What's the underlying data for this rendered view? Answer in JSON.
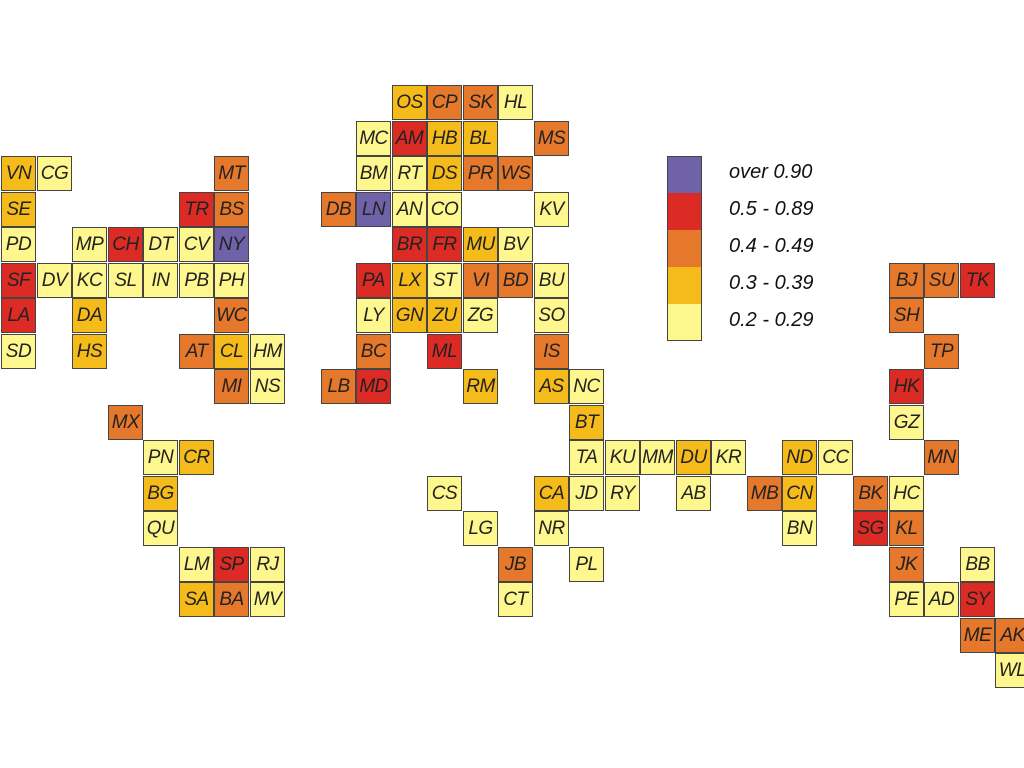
{
  "colors": {
    "purple": "#6f62a8",
    "red": "#dc2b24",
    "orange": "#e5782a",
    "gold": "#f5bb1a",
    "yellow": "#fdf78e"
  },
  "legend": [
    {
      "label": "over 0.90",
      "color": "purple"
    },
    {
      "label": "0.5 - 0.89",
      "color": "red"
    },
    {
      "label": "0.4 - 0.49",
      "color": "orange"
    },
    {
      "label": "0.3 - 0.39",
      "color": "gold"
    },
    {
      "label": "0.2 - 0.29",
      "color": "yellow"
    }
  ],
  "cells": [
    {
      "label": "OS",
      "color": "gold",
      "col": 11,
      "row": 0
    },
    {
      "label": "CP",
      "color": "orange",
      "col": 12,
      "row": 0
    },
    {
      "label": "SK",
      "color": "orange",
      "col": 13,
      "row": 0
    },
    {
      "label": "HL",
      "color": "yellow",
      "col": 14,
      "row": 0
    },
    {
      "label": "MC",
      "color": "yellow",
      "col": 10,
      "row": 1
    },
    {
      "label": "AM",
      "color": "red",
      "col": 11,
      "row": 1
    },
    {
      "label": "HB",
      "color": "gold",
      "col": 12,
      "row": 1
    },
    {
      "label": "BL",
      "color": "gold",
      "col": 13,
      "row": 1
    },
    {
      "label": "MS",
      "color": "orange",
      "col": 15,
      "row": 1
    },
    {
      "label": "VN",
      "color": "gold",
      "col": 0,
      "row": 2
    },
    {
      "label": "CG",
      "color": "yellow",
      "col": 1,
      "row": 2
    },
    {
      "label": "MT",
      "color": "orange",
      "col": 6,
      "row": 2
    },
    {
      "label": "BM",
      "color": "yellow",
      "col": 10,
      "row": 2
    },
    {
      "label": "RT",
      "color": "yellow",
      "col": 11,
      "row": 2
    },
    {
      "label": "DS",
      "color": "gold",
      "col": 12,
      "row": 2
    },
    {
      "label": "PR",
      "color": "orange",
      "col": 13,
      "row": 2
    },
    {
      "label": "WS",
      "color": "orange",
      "col": 14,
      "row": 2
    },
    {
      "label": "SE",
      "color": "gold",
      "col": 0,
      "row": 3
    },
    {
      "label": "TR",
      "color": "red",
      "col": 5,
      "row": 3
    },
    {
      "label": "BS",
      "color": "orange",
      "col": 6,
      "row": 3
    },
    {
      "label": "DB",
      "color": "orange",
      "col": 9,
      "row": 3
    },
    {
      "label": "LN",
      "color": "purple",
      "col": 10,
      "row": 3
    },
    {
      "label": "AN",
      "color": "yellow",
      "col": 11,
      "row": 3
    },
    {
      "label": "CO",
      "color": "yellow",
      "col": 12,
      "row": 3
    },
    {
      "label": "KV",
      "color": "yellow",
      "col": 15,
      "row": 3
    },
    {
      "label": "PD",
      "color": "yellow",
      "col": 0,
      "row": 4
    },
    {
      "label": "MP",
      "color": "yellow",
      "col": 2,
      "row": 4
    },
    {
      "label": "CH",
      "color": "red",
      "col": 3,
      "row": 4
    },
    {
      "label": "DT",
      "color": "yellow",
      "col": 4,
      "row": 4
    },
    {
      "label": "CV",
      "color": "yellow",
      "col": 5,
      "row": 4
    },
    {
      "label": "NY",
      "color": "purple",
      "col": 6,
      "row": 4
    },
    {
      "label": "BR",
      "color": "red",
      "col": 11,
      "row": 4
    },
    {
      "label": "FR",
      "color": "red",
      "col": 12,
      "row": 4
    },
    {
      "label": "MU",
      "color": "gold",
      "col": 13,
      "row": 4
    },
    {
      "label": "BV",
      "color": "yellow",
      "col": 14,
      "row": 4
    },
    {
      "label": "SF",
      "color": "red",
      "col": 0,
      "row": 5
    },
    {
      "label": "DV",
      "color": "yellow",
      "col": 1,
      "row": 5
    },
    {
      "label": "KC",
      "color": "yellow",
      "col": 2,
      "row": 5
    },
    {
      "label": "SL",
      "color": "yellow",
      "col": 3,
      "row": 5
    },
    {
      "label": "IN",
      "color": "yellow",
      "col": 4,
      "row": 5
    },
    {
      "label": "PB",
      "color": "yellow",
      "col": 5,
      "row": 5
    },
    {
      "label": "PH",
      "color": "yellow",
      "col": 6,
      "row": 5
    },
    {
      "label": "PA",
      "color": "red",
      "col": 10,
      "row": 5
    },
    {
      "label": "LX",
      "color": "gold",
      "col": 11,
      "row": 5
    },
    {
      "label": "ST",
      "color": "yellow",
      "col": 12,
      "row": 5
    },
    {
      "label": "VI",
      "color": "orange",
      "col": 13,
      "row": 5
    },
    {
      "label": "BD",
      "color": "orange",
      "col": 14,
      "row": 5
    },
    {
      "label": "BU",
      "color": "yellow",
      "col": 15,
      "row": 5
    },
    {
      "label": "BJ",
      "color": "orange",
      "col": 25,
      "row": 5
    },
    {
      "label": "SU",
      "color": "orange",
      "col": 26,
      "row": 5
    },
    {
      "label": "TK",
      "color": "red",
      "col": 27,
      "row": 5
    },
    {
      "label": "LA",
      "color": "red",
      "col": 0,
      "row": 6
    },
    {
      "label": "DA",
      "color": "gold",
      "col": 2,
      "row": 6
    },
    {
      "label": "WC",
      "color": "orange",
      "col": 6,
      "row": 6
    },
    {
      "label": "LY",
      "color": "yellow",
      "col": 10,
      "row": 6
    },
    {
      "label": "GN",
      "color": "gold",
      "col": 11,
      "row": 6
    },
    {
      "label": "ZU",
      "color": "gold",
      "col": 12,
      "row": 6
    },
    {
      "label": "ZG",
      "color": "yellow",
      "col": 13,
      "row": 6
    },
    {
      "label": "SO",
      "color": "yellow",
      "col": 15,
      "row": 6
    },
    {
      "label": "SH",
      "color": "orange",
      "col": 25,
      "row": 6
    },
    {
      "label": "SD",
      "color": "yellow",
      "col": 0,
      "row": 7
    },
    {
      "label": "HS",
      "color": "gold",
      "col": 2,
      "row": 7
    },
    {
      "label": "AT",
      "color": "orange",
      "col": 5,
      "row": 7
    },
    {
      "label": "CL",
      "color": "gold",
      "col": 6,
      "row": 7
    },
    {
      "label": "HM",
      "color": "yellow",
      "col": 7,
      "row": 7
    },
    {
      "label": "BC",
      "color": "orange",
      "col": 10,
      "row": 7
    },
    {
      "label": "ML",
      "color": "red",
      "col": 12,
      "row": 7
    },
    {
      "label": "IS",
      "color": "orange",
      "col": 15,
      "row": 7
    },
    {
      "label": "TP",
      "color": "orange",
      "col": 26,
      "row": 7
    },
    {
      "label": "MI",
      "color": "orange",
      "col": 6,
      "row": 8
    },
    {
      "label": "NS",
      "color": "yellow",
      "col": 7,
      "row": 8
    },
    {
      "label": "LB",
      "color": "orange",
      "col": 9,
      "row": 8
    },
    {
      "label": "MD",
      "color": "red",
      "col": 10,
      "row": 8
    },
    {
      "label": "RM",
      "color": "gold",
      "col": 13,
      "row": 8
    },
    {
      "label": "AS",
      "color": "gold",
      "col": 15,
      "row": 8
    },
    {
      "label": "NC",
      "color": "yellow",
      "col": 16,
      "row": 8
    },
    {
      "label": "HK",
      "color": "red",
      "col": 25,
      "row": 8
    },
    {
      "label": "MX",
      "color": "orange",
      "col": 3,
      "row": 9
    },
    {
      "label": "BT",
      "color": "gold",
      "col": 16,
      "row": 9
    },
    {
      "label": "GZ",
      "color": "yellow",
      "col": 25,
      "row": 9
    },
    {
      "label": "PN",
      "color": "yellow",
      "col": 4,
      "row": 10
    },
    {
      "label": "CR",
      "color": "gold",
      "col": 5,
      "row": 10
    },
    {
      "label": "TA",
      "color": "yellow",
      "col": 16,
      "row": 10
    },
    {
      "label": "KU",
      "color": "yellow",
      "col": 17,
      "row": 10
    },
    {
      "label": "MM",
      "color": "yellow",
      "col": 18,
      "row": 10
    },
    {
      "label": "DU",
      "color": "gold",
      "col": 19,
      "row": 10
    },
    {
      "label": "KR",
      "color": "yellow",
      "col": 20,
      "row": 10
    },
    {
      "label": "ND",
      "color": "gold",
      "col": 22,
      "row": 10
    },
    {
      "label": "CC",
      "color": "yellow",
      "col": 23,
      "row": 10
    },
    {
      "label": "MN",
      "color": "orange",
      "col": 26,
      "row": 10
    },
    {
      "label": "BG",
      "color": "gold",
      "col": 4,
      "row": 11
    },
    {
      "label": "CS",
      "color": "yellow",
      "col": 12,
      "row": 11
    },
    {
      "label": "CA",
      "color": "gold",
      "col": 15,
      "row": 11
    },
    {
      "label": "JD",
      "color": "yellow",
      "col": 16,
      "row": 11
    },
    {
      "label": "RY",
      "color": "yellow",
      "col": 17,
      "row": 11
    },
    {
      "label": "AB",
      "color": "yellow",
      "col": 19,
      "row": 11
    },
    {
      "label": "MB",
      "color": "orange",
      "col": 21,
      "row": 11
    },
    {
      "label": "CN",
      "color": "gold",
      "col": 22,
      "row": 11
    },
    {
      "label": "BK",
      "color": "orange",
      "col": 24,
      "row": 11
    },
    {
      "label": "HC",
      "color": "yellow",
      "col": 25,
      "row": 11
    },
    {
      "label": "QU",
      "color": "yellow",
      "col": 4,
      "row": 12
    },
    {
      "label": "LG",
      "color": "yellow",
      "col": 13,
      "row": 12
    },
    {
      "label": "NR",
      "color": "yellow",
      "col": 15,
      "row": 12
    },
    {
      "label": "BN",
      "color": "yellow",
      "col": 22,
      "row": 12
    },
    {
      "label": "SG",
      "color": "red",
      "col": 24,
      "row": 12
    },
    {
      "label": "KL",
      "color": "orange",
      "col": 25,
      "row": 12
    },
    {
      "label": "LM",
      "color": "yellow",
      "col": 5,
      "row": 13
    },
    {
      "label": "SP",
      "color": "red",
      "col": 6,
      "row": 13
    },
    {
      "label": "RJ",
      "color": "yellow",
      "col": 7,
      "row": 13
    },
    {
      "label": "JB",
      "color": "orange",
      "col": 14,
      "row": 13
    },
    {
      "label": "PL",
      "color": "yellow",
      "col": 16,
      "row": 13
    },
    {
      "label": "JK",
      "color": "orange",
      "col": 25,
      "row": 13
    },
    {
      "label": "BB",
      "color": "yellow",
      "col": 27,
      "row": 13
    },
    {
      "label": "SA",
      "color": "gold",
      "col": 5,
      "row": 14
    },
    {
      "label": "BA",
      "color": "orange",
      "col": 6,
      "row": 14
    },
    {
      "label": "MV",
      "color": "yellow",
      "col": 7,
      "row": 14
    },
    {
      "label": "CT",
      "color": "yellow",
      "col": 14,
      "row": 14
    },
    {
      "label": "PE",
      "color": "yellow",
      "col": 25,
      "row": 14
    },
    {
      "label": "AD",
      "color": "yellow",
      "col": 26,
      "row": 14
    },
    {
      "label": "SY",
      "color": "red",
      "col": 27,
      "row": 14
    },
    {
      "label": "ME",
      "color": "orange",
      "col": 27,
      "row": 15
    },
    {
      "label": "AK",
      "color": "orange",
      "col": 28,
      "row": 15
    },
    {
      "label": "WL",
      "color": "yellow",
      "col": 28,
      "row": 16
    }
  ]
}
